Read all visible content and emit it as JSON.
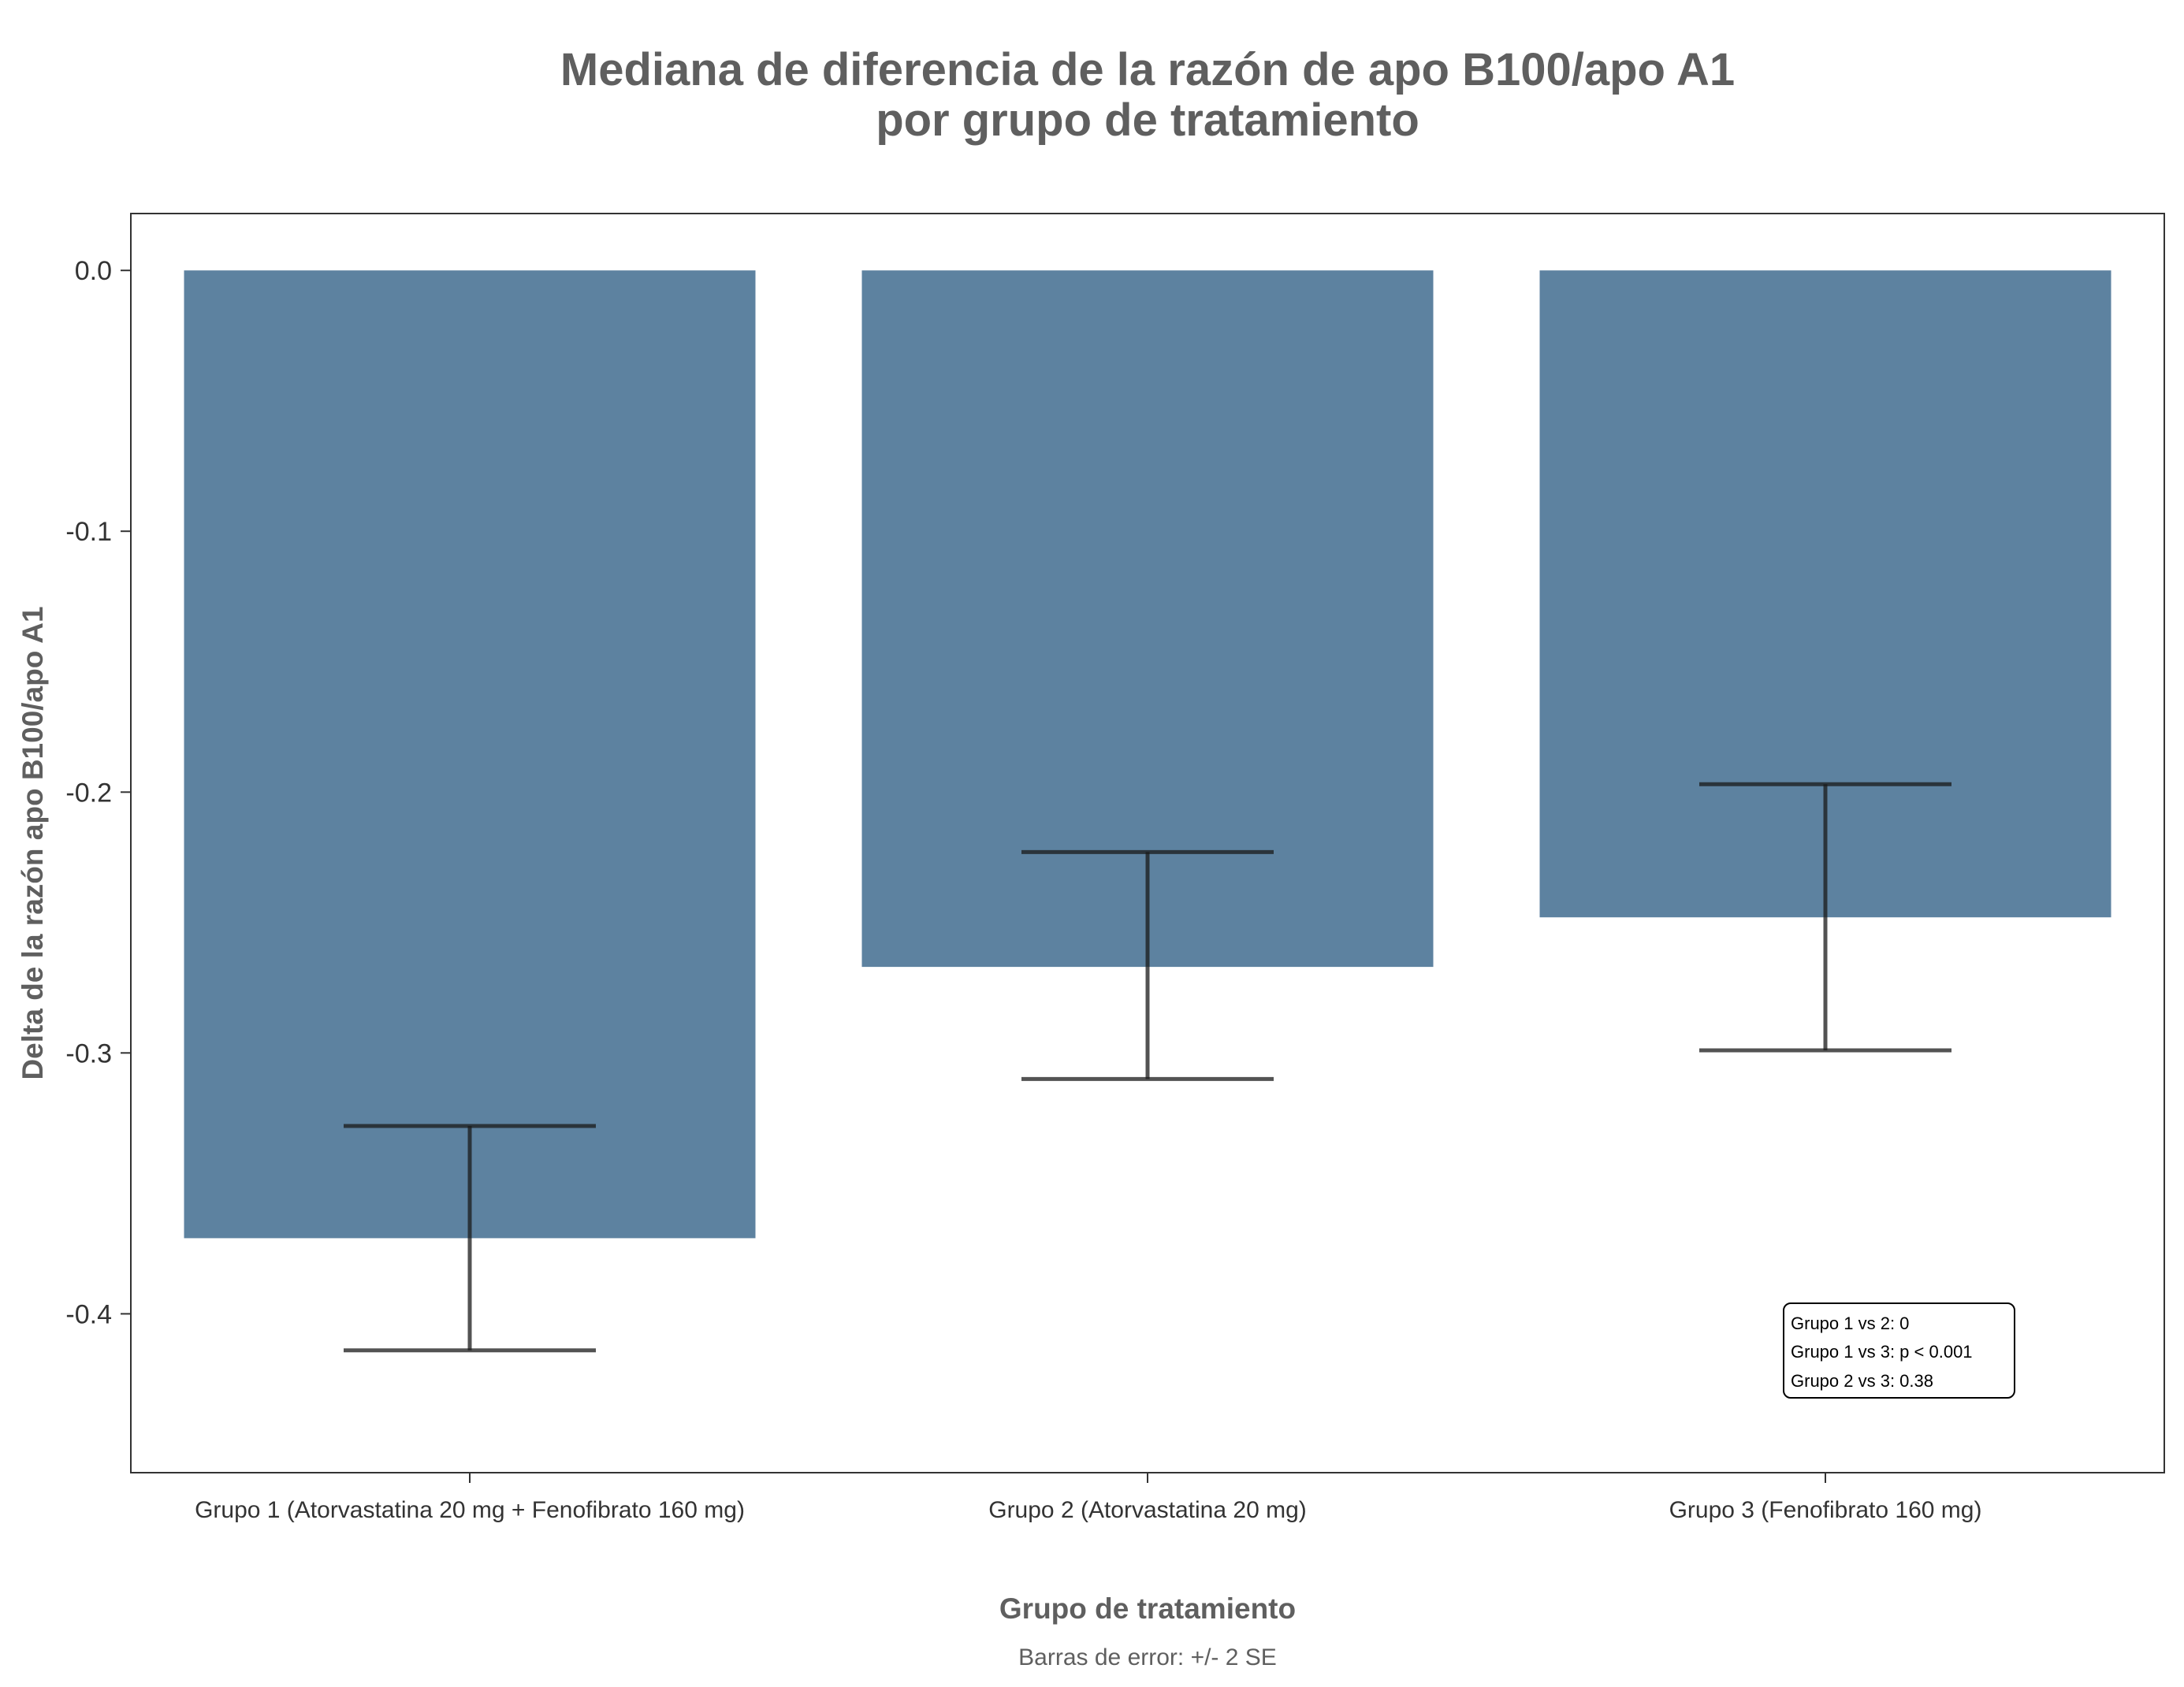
{
  "chart_data": {
    "type": "bar",
    "title_line1": "Mediana de diferencia de la razón de apo B100/apo A1",
    "title_line2": "por grupo de tratamiento",
    "xlabel": "Grupo de tratamiento",
    "ylabel": "Delta de la razón apo B100/apo A1",
    "caption": "Barras de error: +/- 2 SE",
    "categories": [
      "Grupo 1 (Atorvastatina 20 mg + Fenofibrato 160 mg)",
      "Grupo 2 (Atorvastatina 20 mg)",
      "Grupo 3 (Fenofibrato 160 mg)"
    ],
    "values": [
      -0.371,
      -0.267,
      -0.248
    ],
    "error_low": [
      -0.414,
      -0.31,
      -0.299
    ],
    "error_high": [
      -0.328,
      -0.223,
      -0.197
    ],
    "ylim": [
      -0.4609,
      0.0218
    ],
    "yticks": [
      0.0,
      -0.1,
      -0.2,
      -0.3,
      -0.4
    ],
    "ytick_labels": [
      "0.0",
      "-0.1",
      "-0.2",
      "-0.3",
      "-0.4"
    ],
    "bar_color": "#5d82a0",
    "error_bar_color": "#1a1a1a",
    "grid": false,
    "annotation": {
      "lines": [
        "Grupo 1 vs 2: 0",
        "Grupo 1 vs 3: p < 0.001",
        "Grupo 2 vs 3: 0.38"
      ],
      "placement": "bottom-right"
    }
  }
}
